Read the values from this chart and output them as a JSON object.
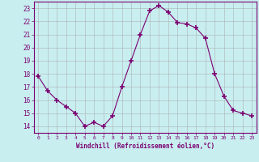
{
  "x": [
    0,
    1,
    2,
    3,
    4,
    5,
    6,
    7,
    8,
    9,
    10,
    11,
    12,
    13,
    14,
    15,
    16,
    17,
    18,
    19,
    20,
    21,
    22,
    23
  ],
  "y": [
    17.8,
    16.7,
    16.0,
    15.5,
    15.0,
    14.0,
    14.3,
    14.0,
    14.8,
    17.0,
    19.0,
    21.0,
    22.8,
    23.2,
    22.7,
    21.9,
    21.8,
    21.5,
    20.7,
    18.0,
    16.3,
    15.2,
    15.0,
    14.8
  ],
  "line_color": "#7B0070",
  "marker": "+",
  "marker_size": 4,
  "bg_color": "#c8eef0",
  "grid_color": "#aaaaaa",
  "xlabel": "Windchill (Refroidissement éolien,°C)",
  "xlabel_color": "#7B0070",
  "tick_color": "#7B0070",
  "ylim": [
    13.5,
    23.5
  ],
  "xlim": [
    -0.5,
    23.5
  ],
  "yticks": [
    14,
    15,
    16,
    17,
    18,
    19,
    20,
    21,
    22,
    23
  ],
  "xticks": [
    0,
    1,
    2,
    3,
    4,
    5,
    6,
    7,
    8,
    9,
    10,
    11,
    12,
    13,
    14,
    15,
    16,
    17,
    18,
    19,
    20,
    21,
    22,
    23
  ],
  "spine_color": "#7B0070",
  "figw": 3.2,
  "figh": 2.0,
  "dpi": 100
}
